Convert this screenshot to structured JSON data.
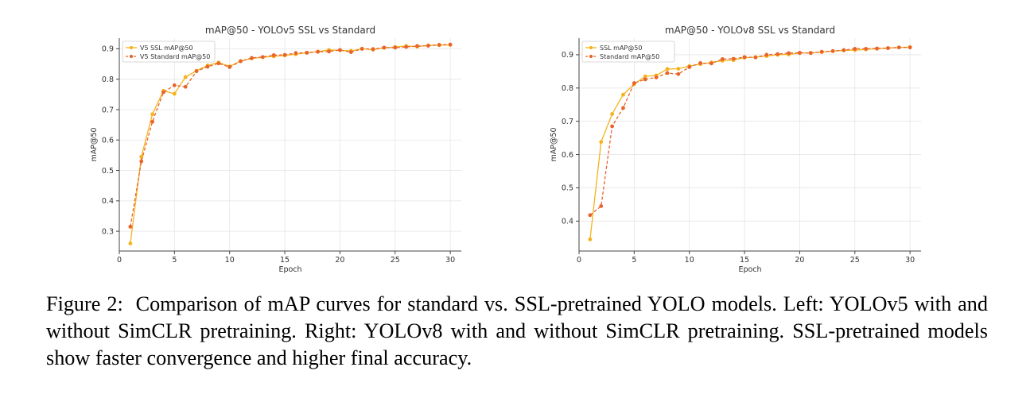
{
  "chart_data": [
    {
      "type": "line",
      "title": "mAP@50 - YOLOv5 SSL vs Standard",
      "xlabel": "Epoch",
      "ylabel": "mAP@50",
      "xlim": [
        0,
        31
      ],
      "ylim": [
        0.235,
        0.935
      ],
      "xticks": [
        0,
        5,
        10,
        15,
        20,
        25,
        30
      ],
      "yticks": [
        0.3,
        0.4,
        0.5,
        0.6,
        0.7,
        0.8,
        0.9
      ],
      "grid": true,
      "legend": "upper-left",
      "x": [
        1,
        2,
        3,
        4,
        5,
        6,
        7,
        8,
        9,
        10,
        11,
        12,
        13,
        14,
        15,
        16,
        17,
        18,
        19,
        20,
        21,
        22,
        23,
        24,
        25,
        26,
        27,
        28,
        29,
        30
      ],
      "series": [
        {
          "name": "V5 SSL mAP@50",
          "color": "#f5b21b",
          "dashed": false,
          "values": [
            0.26,
            0.545,
            0.685,
            0.762,
            0.752,
            0.807,
            0.828,
            0.845,
            0.855,
            0.842,
            0.86,
            0.868,
            0.872,
            0.875,
            0.878,
            0.882,
            0.887,
            0.891,
            0.896,
            0.895,
            0.893,
            0.9,
            0.897,
            0.903,
            0.906,
            0.909,
            0.907,
            0.911,
            0.912,
            0.913
          ]
        },
        {
          "name": "V5 Standard mAP@50",
          "color": "#e8642a",
          "dashed": true,
          "values": [
            0.315,
            0.53,
            0.66,
            0.757,
            0.78,
            0.775,
            0.826,
            0.841,
            0.852,
            0.84,
            0.859,
            0.87,
            0.873,
            0.879,
            0.88,
            0.886,
            0.887,
            0.89,
            0.891,
            0.896,
            0.889,
            0.9,
            0.899,
            0.904,
            0.904,
            0.906,
            0.909,
            0.91,
            0.913,
            0.914
          ]
        }
      ]
    },
    {
      "type": "line",
      "title": "mAP@50 - YOLOv8 SSL vs Standard",
      "xlabel": "Epoch",
      "ylabel": "mAP@50",
      "xlim": [
        0,
        31
      ],
      "ylim": [
        0.31,
        0.95
      ],
      "xticks": [
        0,
        5,
        10,
        15,
        20,
        25,
        30
      ],
      "yticks": [
        0.4,
        0.5,
        0.6,
        0.7,
        0.8,
        0.9
      ],
      "grid": true,
      "legend": "upper-left",
      "x": [
        1,
        2,
        3,
        4,
        5,
        6,
        7,
        8,
        9,
        10,
        11,
        12,
        13,
        14,
        15,
        16,
        17,
        18,
        19,
        20,
        21,
        22,
        23,
        24,
        25,
        26,
        27,
        28,
        29,
        30
      ],
      "series": [
        {
          "name": "SSL mAP@50",
          "color": "#f5b21b",
          "dashed": false,
          "values": [
            0.345,
            0.638,
            0.722,
            0.78,
            0.812,
            0.835,
            0.838,
            0.857,
            0.858,
            0.866,
            0.872,
            0.877,
            0.882,
            0.884,
            0.891,
            0.893,
            0.896,
            0.9,
            0.901,
            0.905,
            0.906,
            0.908,
            0.911,
            0.913,
            0.914,
            0.916,
            0.918,
            0.92,
            0.922,
            0.923
          ]
        },
        {
          "name": "Standard mAP@50",
          "color": "#e8642a",
          "dashed": true,
          "values": [
            0.418,
            0.445,
            0.685,
            0.74,
            0.815,
            0.826,
            0.832,
            0.845,
            0.842,
            0.863,
            0.875,
            0.874,
            0.887,
            0.888,
            0.893,
            0.892,
            0.9,
            0.902,
            0.905,
            0.906,
            0.905,
            0.909,
            0.911,
            0.914,
            0.918,
            0.918,
            0.919,
            0.92,
            0.922,
            0.922
          ]
        }
      ]
    }
  ],
  "caption": {
    "label": "Figure 2:",
    "text": "Comparison of mAP curves for standard vs.  SSL-pretrained YOLO models.  Left: YOLOv5 with and without SimCLR pretraining. Right: YOLOv8 with and without SimCLR pretraining. SSL-pretrained models show faster convergence and higher final accuracy."
  }
}
